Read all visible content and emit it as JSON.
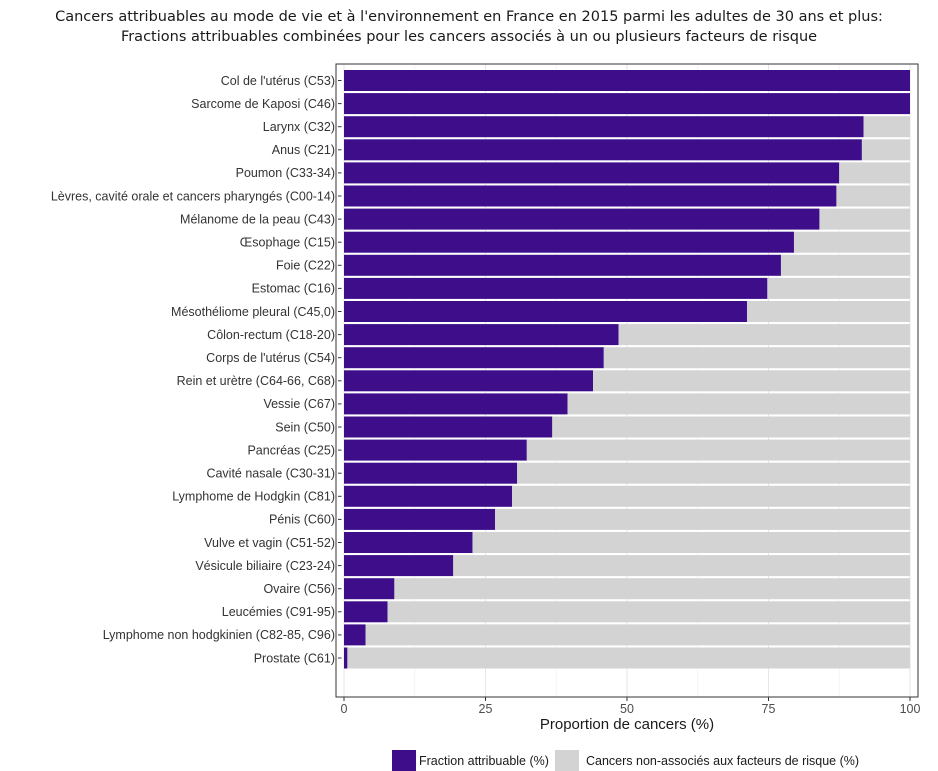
{
  "chart_data": {
    "type": "bar",
    "orientation": "horizontal",
    "stacked": true,
    "title": "Cancers attribuables au mode de vie et à l'environnement en France en 2015 parmi les adultes de 30 ans et plus:",
    "subtitle": "Fractions attribuables combinées pour les cancers associés à un ou plusieurs facteurs de risque",
    "xlabel": "Proportion de cancers (%)",
    "ylabel": "",
    "xlim": [
      0,
      100
    ],
    "xticks": [
      "0",
      "25",
      "50",
      "75",
      "100"
    ],
    "grid": true,
    "legend_position": "bottom",
    "categories": [
      "Col de l'utérus (C53)",
      "Sarcome de Kaposi (C46)",
      "Larynx (C32)",
      "Anus (C21)",
      "Poumon (C33-34)",
      "Lèvres, cavité orale et cancers pharyngés (C00-14)",
      "Mélanome de la peau (C43)",
      "Œsophage (C15)",
      "Foie (C22)",
      "Estomac (C16)",
      "Mésothéliome pleural (C45,0)",
      "Côlon-rectum (C18-20)",
      "Corps de l'utérus (C54)",
      "Rein et urètre (C64-66, C68)",
      "Vessie (C67)",
      "Sein (C50)",
      "Pancréas (C25)",
      "Cavité nasale (C30-31)",
      "Lymphome de Hodgkin (C81)",
      "Pénis (C60)",
      "Vulve et vagin (C51-52)",
      "Vésicule biliaire (C23-24)",
      "Ovaire (C56)",
      "Leucémies (C91-95)",
      "Lymphome non hodgkinien (C82-85, C96)",
      "Prostate (C61)"
    ],
    "series": [
      {
        "name": "Fraction attribuable (%)",
        "color": "#3d0d8a",
        "values": [
          100,
          100,
          91.8,
          91.5,
          87.5,
          87,
          84,
          79.5,
          77.2,
          74.8,
          71.2,
          48.5,
          45.9,
          44,
          39.5,
          36.8,
          32.3,
          30.6,
          29.7,
          26.7,
          22.7,
          19.3,
          8.9,
          7.7,
          3.8,
          0.6
        ]
      },
      {
        "name": "Cancers non-associés aux facteurs de risque (%)",
        "color": "#d3d3d3",
        "values": [
          0,
          0,
          8.2,
          8.5,
          12.5,
          13,
          16,
          20.5,
          22.8,
          25.2,
          28.8,
          51.5,
          54.1,
          56,
          60.5,
          63.2,
          67.7,
          69.4,
          70.3,
          73.3,
          77.3,
          80.7,
          91.1,
          92.3,
          96.2,
          99.4
        ]
      }
    ]
  }
}
